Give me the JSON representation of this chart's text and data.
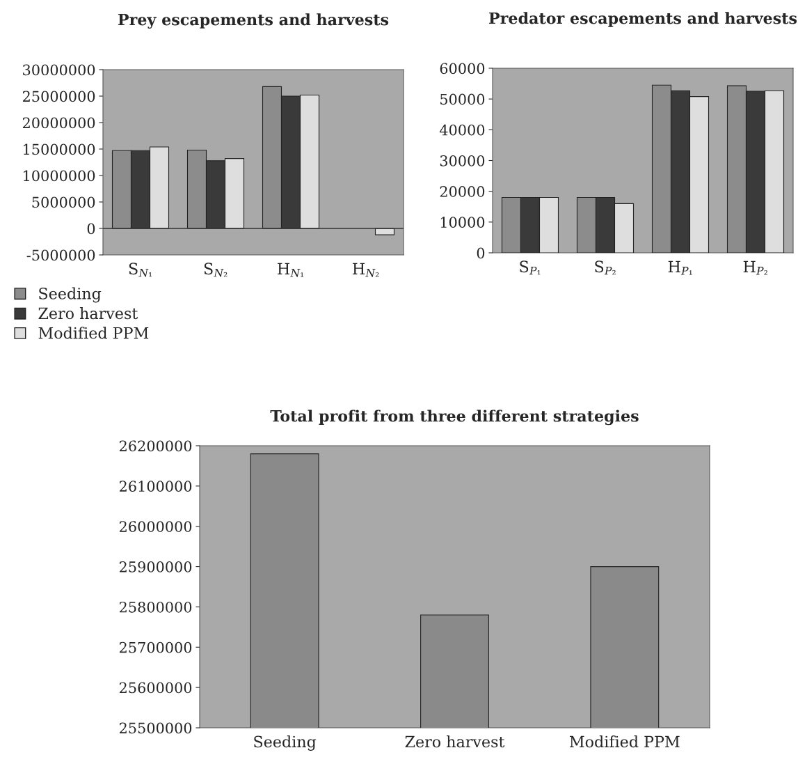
{
  "chart_data": [
    {
      "type": "bar",
      "title": "Prey escapements and harvests",
      "categories": [
        "S$_{N₁}$",
        "S$_{N₂}$",
        "H$_{N₁}$",
        "H$_{N₂}$"
      ],
      "series": [
        {
          "name": "Seeding",
          "color": "#8c8c8c",
          "values": [
            14700000,
            14800000,
            26800000,
            null
          ]
        },
        {
          "name": "Zero harvest",
          "color": "#3a3a3a",
          "values": [
            14700000,
            12800000,
            25000000,
            null
          ]
        },
        {
          "name": "Modified PPM",
          "color": "#dedede",
          "values": [
            15400000,
            13200000,
            25200000,
            -1200000
          ]
        }
      ],
      "ylim": [
        -5000000,
        30000000
      ],
      "yticks": [
        -5000000,
        0,
        5000000,
        10000000,
        15000000,
        20000000,
        25000000,
        30000000
      ],
      "ref_lines": [
        {
          "axis": "y",
          "value": 0,
          "color": "#333333"
        }
      ],
      "legend": "bottom",
      "grid": false
    },
    {
      "type": "bar",
      "title": "Predator escapements and harvests",
      "categories": [
        "S$_{P₁}$",
        "S$_{P₂}$",
        "H$_{P₁}$",
        "H$_{P₂}$"
      ],
      "series": [
        {
          "color": "#8c8c8c",
          "values": [
            18000,
            18000,
            54500,
            54300
          ]
        },
        {
          "color": "#3a3a3a",
          "values": [
            18000,
            18000,
            52700,
            52500
          ]
        },
        {
          "color": "#dedede",
          "values": [
            18000,
            16000,
            50800,
            52700
          ]
        }
      ],
      "ylim": [
        0,
        60000
      ],
      "yticks": [
        0,
        10000,
        20000,
        30000,
        40000,
        50000,
        60000
      ],
      "grid": false
    },
    {
      "type": "bar",
      "title": "Total profit from three different strategies",
      "categories": [
        "Seeding",
        "Zero harvest",
        "Modified PPM"
      ],
      "values": [
        26180000,
        25780000,
        25900000
      ],
      "color": "#8a8a8a",
      "ylim": [
        25500000,
        26200000
      ],
      "yticks": [
        25500000,
        25600000,
        25700000,
        25800000,
        25900000,
        26000000,
        26100000,
        26200000
      ],
      "grid": false
    }
  ]
}
